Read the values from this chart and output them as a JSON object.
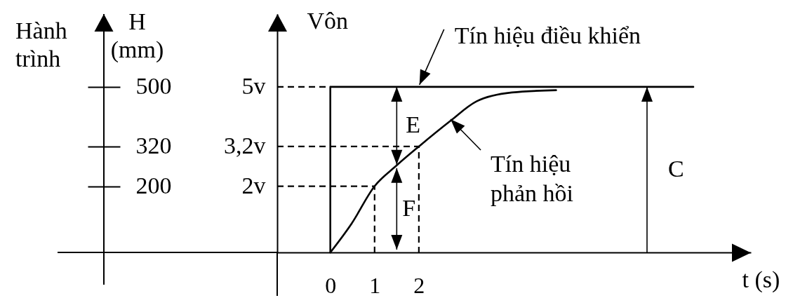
{
  "chart_data": {
    "type": "line",
    "xlabel": "t (s)",
    "ylabel": "Vôn",
    "y2label": "H (mm)",
    "annotations": [
      "Hành trình",
      "E",
      "F",
      "C"
    ],
    "xlim": [
      -1.2,
      9.5
    ],
    "xticks": [
      0,
      1,
      2
    ],
    "ylim": [
      0,
      7.2
    ],
    "yticks": [
      {
        "value": 2,
        "label": "2v"
      },
      {
        "value": 3.2,
        "label": "3,2v"
      },
      {
        "value": 5,
        "label": "5v"
      }
    ],
    "y2lim": [
      0,
      720
    ],
    "y2ticks": [
      200,
      320,
      500
    ],
    "series": [
      {
        "name": "Tín hiệu điều khiển",
        "color": "#000000",
        "x": [
          0,
          0,
          8.2
        ],
        "values": [
          0,
          5,
          5
        ],
        "line_style": "solid"
      },
      {
        "name": "Tín hiệu phản hồi",
        "color": "#000000",
        "x": [
          0,
          0.48,
          1,
          1.5,
          2,
          2.7,
          3.3,
          4.1,
          5.1
        ],
        "values": [
          0,
          0.87,
          2,
          2.63,
          3.2,
          3.96,
          4.56,
          4.83,
          4.9
        ],
        "line_style": "solid"
      },
      {
        "color": "#000000",
        "x": [
          -1.2,
          0
        ],
        "values": [
          5,
          5
        ],
        "line_style": "dashed"
      },
      {
        "color": "#000000",
        "x": [
          -1.2,
          2,
          2
        ],
        "values": [
          3.2,
          3.2,
          0
        ],
        "line_style": "dashed"
      },
      {
        "color": "#000000",
        "x": [
          -1.2,
          1,
          1
        ],
        "values": [
          2,
          2,
          0
        ],
        "line_style": "dashed"
      }
    ]
  }
}
